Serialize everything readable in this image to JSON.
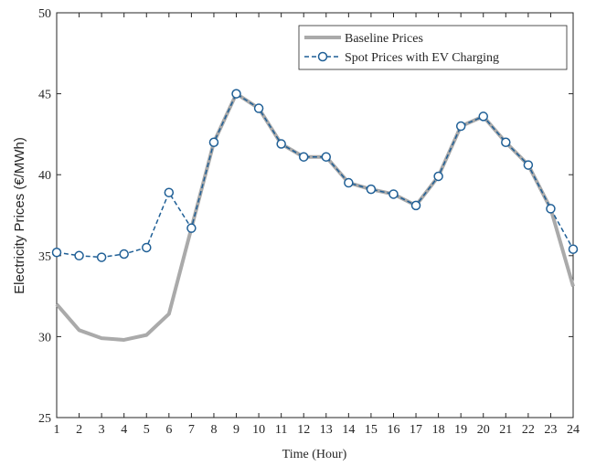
{
  "chart_data": {
    "type": "line",
    "xlabel": "Time (Hour)",
    "ylabel": "Electricity Prices (€/MWh)",
    "x": [
      1,
      2,
      3,
      4,
      5,
      6,
      7,
      8,
      9,
      10,
      11,
      12,
      13,
      14,
      15,
      16,
      17,
      18,
      19,
      20,
      21,
      22,
      23,
      24
    ],
    "series": [
      {
        "name": "Baseline Prices",
        "color": "#aaaaaa",
        "linestyle": "solid",
        "marker": "none",
        "values": [
          32.0,
          30.4,
          29.9,
          29.8,
          30.1,
          31.4,
          36.7,
          42.0,
          45.0,
          44.1,
          41.9,
          41.1,
          41.1,
          39.5,
          39.1,
          38.8,
          38.1,
          39.9,
          43.0,
          43.6,
          42.0,
          40.6,
          37.9,
          33.1
        ]
      },
      {
        "name": "Spot Prices with EV Charging",
        "color": "#1f5f96",
        "linestyle": "dashed",
        "marker": "circle",
        "values": [
          35.2,
          35.0,
          34.9,
          35.1,
          35.5,
          38.9,
          36.7,
          42.0,
          45.0,
          44.1,
          41.9,
          41.1,
          41.1,
          39.5,
          39.1,
          38.8,
          38.1,
          39.9,
          43.0,
          43.6,
          42.0,
          40.6,
          37.9,
          35.4
        ]
      }
    ],
    "xlim": [
      1,
      24
    ],
    "ylim": [
      25,
      50
    ],
    "xticks": [
      1,
      2,
      3,
      4,
      5,
      6,
      7,
      8,
      9,
      10,
      11,
      12,
      13,
      14,
      15,
      16,
      17,
      18,
      19,
      20,
      21,
      22,
      23,
      24
    ],
    "yticks": [
      25,
      30,
      35,
      40,
      45,
      50
    ],
    "grid": false,
    "legend": "top-right"
  }
}
